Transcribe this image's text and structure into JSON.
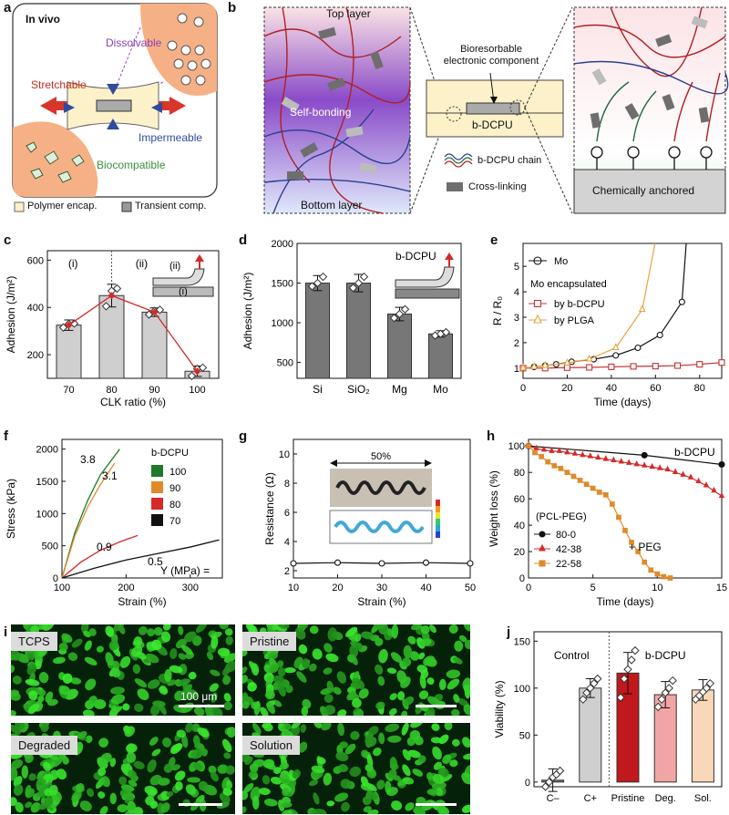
{
  "panels": {
    "a": {
      "label": "a",
      "title": "In vivo",
      "dissolvable": "Dissolvable",
      "stretchable": "Stretchable",
      "impermeable": "Impermeable",
      "biocompatible": "Biocompatible",
      "legend_polymer": "Polymer encap.",
      "legend_transient": "Transient comp."
    },
    "b": {
      "label": "b",
      "top_layer": "Top layer",
      "self_bonding": "Self-bonding",
      "bottom_layer": "Bottom layer",
      "component": "Bioresorbable electronic component",
      "bdcpu": "b-DCPU",
      "legend_chain": "b-DCPU chain",
      "legend_crosslink": "Cross-linking",
      "anchored": "Chemically anchored",
      "colors": {
        "red_chain": "#b01f24",
        "blue_chain": "#2a3f8f",
        "green_chain": "#1d6b3a",
        "crosslink": "#6e6e6e"
      }
    },
    "c": {
      "label": "c",
      "ylabel": "Adhesion (J/m²)",
      "xlabel": "CLK ratio (%)",
      "region_i": "(i)",
      "region_ii": "(ii)",
      "inset_i": "(i)",
      "inset_ii": "(ii)"
    },
    "d": {
      "label": "d",
      "ylabel": "Adhesion (J/m²)",
      "inset": "b-DCPU"
    },
    "e": {
      "label": "e",
      "ylabel": "R / R₀",
      "xlabel": "Time (days)",
      "legend_mo": "Mo",
      "legend_heading": "Mo encapsulated",
      "legend_bdcpu": "by b-DCPU",
      "legend_plga": "by PLGA"
    },
    "f": {
      "label": "f",
      "ylabel": "Stress (kPa)",
      "xlabel": "Strain (%)",
      "legend_title": "b-DCPU",
      "ym": "Y (MPa) ="
    },
    "g": {
      "label": "g",
      "ylabel": "Resistance (Ω)",
      "xlabel": "Strain (%)",
      "stretch": "50%"
    },
    "h": {
      "label": "h",
      "ylabel": "Weight loss (%)",
      "xlabel": "Time (days)",
      "bdcpu": "b-DCPU",
      "legend_title": "(PCL-PEG)",
      "peg": "+ PEG"
    },
    "i": {
      "label": "i",
      "tcps": "TCPS",
      "pristine": "Pristine",
      "degraded": "Degraded",
      "solution": "Solution",
      "scale": "100 μm"
    },
    "j": {
      "label": "j",
      "ylabel": "Viability (%)",
      "control": "Control",
      "bdcpu": "b-DCPU"
    }
  },
  "chart_data": [
    {
      "panel": "c",
      "type": "bar",
      "categories": [
        "70",
        "80",
        "90",
        "100"
      ],
      "values": [
        325,
        450,
        380,
        130
      ],
      "errors": [
        22,
        48,
        18,
        22
      ],
      "ylim": [
        100,
        640
      ],
      "yticks": [
        200,
        400,
        600
      ],
      "points": [
        [
          315,
          330,
          332
        ],
        [
          405,
          470,
          480
        ],
        [
          370,
          385,
          390
        ],
        [
          110,
          140,
          145
        ]
      ],
      "xlabel": "CLK ratio (%)",
      "ylabel": "Adhesion (J/m²)",
      "colors": {
        "bar": "#cfcfcf",
        "line": "#d42a2a"
      }
    },
    {
      "panel": "d",
      "type": "bar",
      "categories": [
        "Si",
        "SiO₂",
        "Mg",
        "Mo"
      ],
      "values": [
        1500,
        1500,
        1110,
        860
      ],
      "errors": [
        95,
        110,
        85,
        40
      ],
      "ylim": [
        300,
        2000
      ],
      "yticks": [
        500,
        1000,
        1500,
        2000
      ],
      "points": [
        [
          1460,
          1500,
          1580
        ],
        [
          1440,
          1500,
          1580
        ],
        [
          1060,
          1110,
          1170
        ],
        [
          840,
          860,
          880
        ]
      ],
      "ylabel": "Adhesion (J/m²)",
      "colors": {
        "bar": "#777777"
      }
    },
    {
      "panel": "e",
      "type": "line",
      "xlim": [
        0,
        90
      ],
      "ylim": [
        0.6,
        5.9
      ],
      "xticks": [
        0,
        20,
        40,
        60,
        80
      ],
      "yticks": [
        1,
        2,
        3,
        4,
        5
      ],
      "series": [
        {
          "name": "Mo",
          "x": [
            0,
            5,
            10,
            15,
            22,
            32,
            42,
            52,
            62,
            72,
            74
          ],
          "y": [
            1.0,
            1.05,
            1.1,
            1.15,
            1.25,
            1.35,
            1.5,
            1.8,
            2.3,
            3.6,
            6.0
          ],
          "color": "#111111",
          "marker": "circle"
        },
        {
          "name": "by b-DCPU",
          "x": [
            0,
            10,
            20,
            30,
            40,
            50,
            60,
            70,
            80,
            90
          ],
          "y": [
            1.0,
            1.0,
            1.02,
            1.03,
            1.05,
            1.07,
            1.08,
            1.1,
            1.15,
            1.22
          ],
          "color": "#c83232",
          "marker": "square"
        },
        {
          "name": "by PLGA",
          "x": [
            0,
            5,
            10,
            20,
            30,
            42,
            54,
            60
          ],
          "y": [
            1.0,
            1.05,
            1.1,
            1.2,
            1.35,
            1.8,
            3.3,
            6.0
          ],
          "color": "#e8a33d",
          "marker": "triangle"
        }
      ],
      "xlabel": "Time (days)",
      "ylabel": "R / R₀"
    },
    {
      "panel": "f",
      "type": "line",
      "xlim": [
        100,
        350
      ],
      "ylim": [
        0,
        2150
      ],
      "xticks": [
        100,
        200,
        300
      ],
      "yticks": [
        0,
        500,
        1000,
        1500,
        2000
      ],
      "series": [
        {
          "name": "100",
          "modulus": "3.8",
          "x": [
            100,
            120,
            140,
            160,
            190
          ],
          "y": [
            0,
            700,
            1200,
            1600,
            2000
          ],
          "color": "#1e7a2a"
        },
        {
          "name": "90",
          "modulus": "3.1",
          "x": [
            100,
            120,
            140,
            160,
            182
          ],
          "y": [
            0,
            650,
            1100,
            1450,
            1780
          ],
          "color": "#e08a2a"
        },
        {
          "name": "80",
          "modulus": "0.9",
          "x": [
            100,
            130,
            160,
            190,
            218
          ],
          "y": [
            0,
            250,
            430,
            560,
            660
          ],
          "color": "#d42a2a"
        },
        {
          "name": "70",
          "modulus": "0.5",
          "x": [
            100,
            150,
            200,
            250,
            300,
            345
          ],
          "y": [
            0,
            150,
            280,
            380,
            480,
            590
          ],
          "color": "#111111"
        }
      ],
      "xlabel": "Strain (%)",
      "ylabel": "Stress (kPa)"
    },
    {
      "panel": "g",
      "type": "line",
      "xlim": [
        10,
        50
      ],
      "ylim": [
        1.5,
        11
      ],
      "xticks": [
        10,
        20,
        30,
        40,
        50
      ],
      "yticks": [
        2,
        4,
        6,
        8,
        10
      ],
      "series": [
        {
          "name": "",
          "x": [
            10,
            20,
            30,
            40,
            50
          ],
          "y": [
            2.5,
            2.55,
            2.5,
            2.55,
            2.5
          ],
          "color": "#111111",
          "marker": "circle"
        }
      ],
      "xlabel": "Strain (%)",
      "ylabel": "Resistance (Ω)"
    },
    {
      "panel": "h",
      "type": "line",
      "xlim": [
        0,
        15
      ],
      "ylim": [
        0,
        105
      ],
      "xticks": [
        0,
        5,
        10,
        15
      ],
      "yticks": [
        0,
        20,
        40,
        60,
        80,
        100
      ],
      "series": [
        {
          "name": "80-0",
          "x": [
            0,
            9,
            15
          ],
          "y": [
            100,
            93,
            86
          ],
          "color": "#111111",
          "marker": "circle"
        },
        {
          "name": "42-38",
          "x": [
            0,
            0.6,
            1.2,
            1.8,
            2.4,
            3,
            3.6,
            4.2,
            4.8,
            5.4,
            6,
            6.6,
            7.2,
            7.8,
            8.4,
            9,
            9.6,
            10.2,
            10.8,
            11.4,
            12,
            12.6,
            13.2,
            13.8,
            14.4,
            15
          ],
          "y": [
            100,
            98,
            97,
            96,
            96,
            95,
            94,
            93,
            92,
            91,
            90,
            89,
            88,
            87,
            86,
            85,
            84,
            83,
            82,
            80,
            78,
            76,
            73,
            70,
            66,
            62
          ],
          "color": "#d42a2a",
          "marker": "triangle"
        },
        {
          "name": "22-58",
          "x": [
            0,
            0.5,
            1,
            1.5,
            2,
            2.5,
            3,
            3.5,
            4,
            4.5,
            5,
            5.5,
            6,
            6.5,
            7,
            7.5,
            8,
            8.5,
            9,
            9.5,
            10,
            10.5,
            11
          ],
          "y": [
            100,
            95,
            92,
            88,
            85,
            83,
            80,
            77,
            74,
            71,
            68,
            65,
            63,
            56,
            46,
            36,
            27,
            20,
            12,
            6,
            3,
            1,
            0
          ],
          "color": "#e08a2a",
          "marker": "square"
        }
      ],
      "xlabel": "Time (days)",
      "ylabel": "Weight loss (%)"
    },
    {
      "panel": "j",
      "type": "bar",
      "categories": [
        "C–",
        "C+",
        "Pristine",
        "Deg.",
        "Sol."
      ],
      "values": [
        2,
        100,
        116,
        93,
        98
      ],
      "errors": [
        12,
        10,
        22,
        14,
        11
      ],
      "ylim": [
        -5,
        160
      ],
      "yticks": [
        0,
        50,
        100,
        150
      ],
      "points": [
        [
          -5,
          0,
          5,
          8,
          12
        ],
        [
          88,
          95,
          100,
          105,
          110
        ],
        [
          90,
          110,
          120,
          130,
          140
        ],
        [
          80,
          88,
          95,
          100,
          108
        ],
        [
          88,
          92,
          96,
          100,
          105
        ]
      ],
      "colors": [
        "#777777",
        "#cfcfcf",
        "#c0181c",
        "#f2a5a5",
        "#f8d8b8"
      ],
      "ylabel": "Viability (%)"
    }
  ]
}
